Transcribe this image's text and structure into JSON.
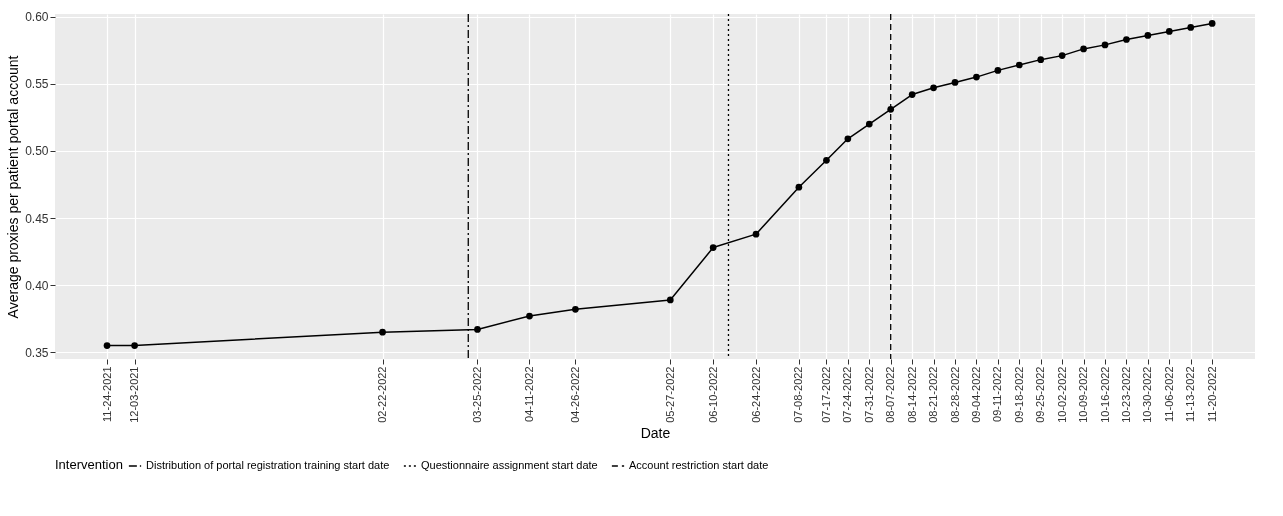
{
  "chart_data": {
    "type": "line",
    "xlabel": "Date",
    "ylabel": "Average proxies per patient portal account",
    "legend_title": "Intervention",
    "x": [
      "2021-11-24",
      "2021-12-03",
      "2022-02-22",
      "2022-03-25",
      "2022-04-11",
      "2022-04-26",
      "2022-05-27",
      "2022-06-10",
      "2022-06-24",
      "2022-07-08",
      "2022-07-17",
      "2022-07-24",
      "2022-07-31",
      "2022-08-07",
      "2022-08-14",
      "2022-08-21",
      "2022-08-28",
      "2022-09-04",
      "2022-09-11",
      "2022-09-18",
      "2022-09-25",
      "2022-10-02",
      "2022-10-09",
      "2022-10-16",
      "2022-10-23",
      "2022-10-30",
      "2022-11-06",
      "2022-11-13",
      "2022-11-20"
    ],
    "series": [
      {
        "color": "#000000",
        "values": [
          0.355,
          0.355,
          0.365,
          0.367,
          0.377,
          0.382,
          0.389,
          0.428,
          0.438,
          0.473,
          0.493,
          0.509,
          0.52,
          0.531,
          0.542,
          0.547,
          0.551,
          0.555,
          0.56,
          0.564,
          0.568,
          0.571,
          0.576,
          0.579,
          0.583,
          0.586,
          0.589,
          0.592,
          0.595
        ]
      }
    ],
    "xlim": [
      "2021-11-07",
      "2022-12-04"
    ],
    "xticks": [
      {
        "value": "2021-11-24",
        "label": "11-24-2021"
      },
      {
        "value": "2021-12-03",
        "label": "12-03-2021"
      },
      {
        "value": "2022-02-22",
        "label": "02-22-2022"
      },
      {
        "value": "2022-03-25",
        "label": "03-25-2022"
      },
      {
        "value": "2022-04-11",
        "label": "04-11-2022"
      },
      {
        "value": "2022-04-26",
        "label": "04-26-2022"
      },
      {
        "value": "2022-05-27",
        "label": "05-27-2022"
      },
      {
        "value": "2022-06-10",
        "label": "06-10-2022"
      },
      {
        "value": "2022-06-24",
        "label": "06-24-2022"
      },
      {
        "value": "2022-07-08",
        "label": "07-08-2022"
      },
      {
        "value": "2022-07-17",
        "label": "07-17-2022"
      },
      {
        "value": "2022-07-24",
        "label": "07-24-2022"
      },
      {
        "value": "2022-07-31",
        "label": "07-31-2022"
      },
      {
        "value": "2022-08-07",
        "label": "08-07-2022"
      },
      {
        "value": "2022-08-14",
        "label": "08-14-2022"
      },
      {
        "value": "2022-08-21",
        "label": "08-21-2022"
      },
      {
        "value": "2022-08-28",
        "label": "08-28-2022"
      },
      {
        "value": "2022-09-04",
        "label": "09-04-2022"
      },
      {
        "value": "2022-09-11",
        "label": "09-11-2022"
      },
      {
        "value": "2022-09-18",
        "label": "09-18-2022"
      },
      {
        "value": "2022-09-25",
        "label": "09-25-2022"
      },
      {
        "value": "2022-10-02",
        "label": "10-02-2022"
      },
      {
        "value": "2022-10-09",
        "label": "10-09-2022"
      },
      {
        "value": "2022-10-16",
        "label": "10-16-2022"
      },
      {
        "value": "2022-10-23",
        "label": "10-23-2022"
      },
      {
        "value": "2022-10-30",
        "label": "10-30-2022"
      },
      {
        "value": "2022-11-06",
        "label": "11-06-2022"
      },
      {
        "value": "2022-11-13",
        "label": "11-13-2022"
      },
      {
        "value": "2022-11-20",
        "label": "11-20-2022"
      }
    ],
    "ylim": [
      0.345,
      0.602
    ],
    "yticks": [
      {
        "value": 0.35,
        "label": "0.35"
      },
      {
        "value": 0.4,
        "label": "0.40"
      },
      {
        "value": 0.45,
        "label": "0.45"
      },
      {
        "value": 0.5,
        "label": "0.50"
      },
      {
        "value": 0.55,
        "label": "0.55"
      },
      {
        "value": 0.6,
        "label": "0.60"
      }
    ],
    "ref_lines": [
      {
        "axis": "x",
        "value": "2022-03-22",
        "label": "Distribution of portal registration training start date",
        "line_style": "dashdot"
      },
      {
        "axis": "x",
        "value": "2022-06-15",
        "label": "Questionnaire assignment start date",
        "line_style": "dotted"
      },
      {
        "axis": "x",
        "value": "2022-08-07",
        "label": "Account restriction start date",
        "line_style": "dashed"
      }
    ],
    "grid": true,
    "legend": "bottom",
    "marker": "circle",
    "line_style": "solid"
  }
}
